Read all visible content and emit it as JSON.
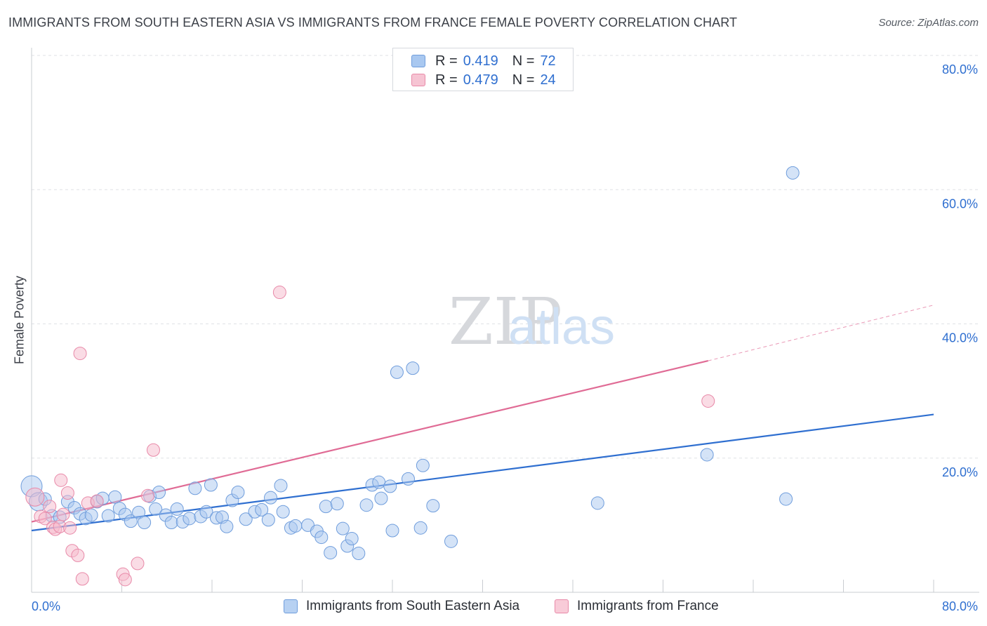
{
  "title": "IMMIGRANTS FROM SOUTH EASTERN ASIA VS IMMIGRANTS FROM FRANCE FEMALE POVERTY CORRELATION CHART",
  "source": "Source: ZipAtlas.com",
  "watermark": {
    "zip": "ZIP",
    "atlas": "atlas"
  },
  "legend": {
    "r_label": "R =",
    "n_label": "N =",
    "series": [
      {
        "name": "Immigrants from South Eastern Asia",
        "r": "0.419",
        "n": "72"
      },
      {
        "name": "Immigrants from France",
        "r": "0.479",
        "n": "24"
      }
    ]
  },
  "colors": {
    "blue_fill": "#a9c8f0",
    "blue_stroke": "#6f9ddc",
    "blue_line": "#2f6fd0",
    "pink_fill": "#f6b9cb",
    "pink_stroke": "#e889a8",
    "pink_line": "#e06b95",
    "axis_text": "#2f6fd0",
    "grid": "#dfe2e6"
  },
  "chart_data": {
    "type": "scatter",
    "title": "IMMIGRANTS FROM SOUTH EASTERN ASIA VS IMMIGRANTS FROM FRANCE FEMALE POVERTY CORRELATION CHART",
    "xlabel": "",
    "ylabel": "Female Poverty",
    "xlim": [
      0,
      80
    ],
    "ylim": [
      0,
      80
    ],
    "x_tick_labels": [
      "0.0%",
      "80.0%"
    ],
    "y_ticks": [
      20,
      40,
      60,
      80
    ],
    "y_tick_labels": [
      "20.0%",
      "40.0%",
      "60.0%",
      "80.0%"
    ],
    "grid": "horizontal dashed",
    "series": [
      {
        "name": "Immigrants from South Eastern Asia",
        "color": "blue",
        "trend": {
          "x": [
            0,
            80
          ],
          "y": [
            9.2,
            26.5
          ]
        },
        "points": [
          {
            "x": 0.0,
            "y": 15.8,
            "s": "xl"
          },
          {
            "x": 0.6,
            "y": 13.5,
            "s": "l"
          },
          {
            "x": 1.2,
            "y": 13.9
          },
          {
            "x": 1.8,
            "y": 11.4
          },
          {
            "x": 2.5,
            "y": 11.2
          },
          {
            "x": 3.2,
            "y": 13.5
          },
          {
            "x": 3.8,
            "y": 12.6
          },
          {
            "x": 4.3,
            "y": 11.7
          },
          {
            "x": 4.8,
            "y": 11.0
          },
          {
            "x": 5.3,
            "y": 11.5
          },
          {
            "x": 5.8,
            "y": 13.5
          },
          {
            "x": 6.3,
            "y": 14.0
          },
          {
            "x": 6.8,
            "y": 11.4
          },
          {
            "x": 7.4,
            "y": 14.2
          },
          {
            "x": 7.8,
            "y": 12.5
          },
          {
            "x": 8.3,
            "y": 11.6
          },
          {
            "x": 8.8,
            "y": 10.6
          },
          {
            "x": 9.5,
            "y": 11.9
          },
          {
            "x": 10.0,
            "y": 10.4
          },
          {
            "x": 10.5,
            "y": 14.3
          },
          {
            "x": 11.0,
            "y": 12.4
          },
          {
            "x": 11.3,
            "y": 14.9
          },
          {
            "x": 11.9,
            "y": 11.5
          },
          {
            "x": 12.4,
            "y": 10.4
          },
          {
            "x": 12.9,
            "y": 12.4
          },
          {
            "x": 13.4,
            "y": 10.5
          },
          {
            "x": 14.0,
            "y": 11.0
          },
          {
            "x": 14.5,
            "y": 15.5
          },
          {
            "x": 15.0,
            "y": 11.3
          },
          {
            "x": 15.5,
            "y": 12.0
          },
          {
            "x": 15.9,
            "y": 16.0
          },
          {
            "x": 16.4,
            "y": 11.1
          },
          {
            "x": 16.9,
            "y": 11.2
          },
          {
            "x": 17.3,
            "y": 9.8
          },
          {
            "x": 17.8,
            "y": 13.7
          },
          {
            "x": 18.3,
            "y": 14.9
          },
          {
            "x": 19.0,
            "y": 10.9
          },
          {
            "x": 19.8,
            "y": 12.0
          },
          {
            "x": 20.4,
            "y": 12.3
          },
          {
            "x": 21.0,
            "y": 10.8
          },
          {
            "x": 21.2,
            "y": 14.1
          },
          {
            "x": 22.1,
            "y": 15.9
          },
          {
            "x": 22.3,
            "y": 12.0
          },
          {
            "x": 23.0,
            "y": 9.6
          },
          {
            "x": 23.4,
            "y": 9.9
          },
          {
            "x": 24.5,
            "y": 10.0
          },
          {
            "x": 25.3,
            "y": 9.1
          },
          {
            "x": 25.7,
            "y": 8.2
          },
          {
            "x": 26.1,
            "y": 12.8
          },
          {
            "x": 26.5,
            "y": 5.9
          },
          {
            "x": 27.1,
            "y": 13.2
          },
          {
            "x": 27.6,
            "y": 9.5
          },
          {
            "x": 28.0,
            "y": 6.9
          },
          {
            "x": 28.4,
            "y": 8.0
          },
          {
            "x": 29.0,
            "y": 5.8
          },
          {
            "x": 29.7,
            "y": 13.0
          },
          {
            "x": 30.2,
            "y": 16.0
          },
          {
            "x": 30.8,
            "y": 16.4
          },
          {
            "x": 31.0,
            "y": 14.0
          },
          {
            "x": 31.8,
            "y": 15.8
          },
          {
            "x": 32.0,
            "y": 9.2
          },
          {
            "x": 32.4,
            "y": 32.8
          },
          {
            "x": 33.4,
            "y": 16.9
          },
          {
            "x": 33.8,
            "y": 33.4
          },
          {
            "x": 34.5,
            "y": 9.6
          },
          {
            "x": 34.7,
            "y": 18.9
          },
          {
            "x": 35.6,
            "y": 12.9
          },
          {
            "x": 37.2,
            "y": 7.6
          },
          {
            "x": 50.2,
            "y": 13.3
          },
          {
            "x": 59.9,
            "y": 20.5
          },
          {
            "x": 66.9,
            "y": 13.9
          },
          {
            "x": 67.5,
            "y": 62.5
          }
        ]
      },
      {
        "name": "Immigrants from France",
        "color": "pink",
        "trend": {
          "x": [
            0,
            60
          ],
          "y": [
            10.5,
            34.5
          ]
        },
        "trend_extension": {
          "x": [
            60,
            80
          ],
          "y": [
            34.5,
            42.8
          ]
        },
        "points": [
          {
            "x": 0.3,
            "y": 14.2,
            "s": "l"
          },
          {
            "x": 0.8,
            "y": 11.3
          },
          {
            "x": 1.2,
            "y": 11.0
          },
          {
            "x": 1.6,
            "y": 12.8
          },
          {
            "x": 1.9,
            "y": 9.7
          },
          {
            "x": 2.1,
            "y": 9.4
          },
          {
            "x": 2.5,
            "y": 9.8
          },
          {
            "x": 2.6,
            "y": 16.7
          },
          {
            "x": 2.8,
            "y": 11.6
          },
          {
            "x": 3.2,
            "y": 14.8
          },
          {
            "x": 3.4,
            "y": 9.6
          },
          {
            "x": 3.6,
            "y": 6.2
          },
          {
            "x": 4.3,
            "y": 35.6
          },
          {
            "x": 4.1,
            "y": 5.5
          },
          {
            "x": 4.5,
            "y": 2.0
          },
          {
            "x": 5.0,
            "y": 13.3
          },
          {
            "x": 5.8,
            "y": 13.6
          },
          {
            "x": 8.1,
            "y": 2.7
          },
          {
            "x": 8.3,
            "y": 1.9
          },
          {
            "x": 9.4,
            "y": 4.3
          },
          {
            "x": 10.3,
            "y": 14.4
          },
          {
            "x": 10.8,
            "y": 21.2
          },
          {
            "x": 22.0,
            "y": 44.7
          },
          {
            "x": 60.0,
            "y": 28.5
          }
        ]
      }
    ]
  }
}
